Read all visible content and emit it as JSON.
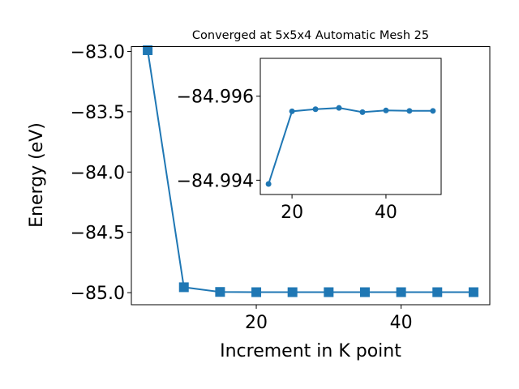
{
  "chart_data": [
    {
      "type": "line",
      "title": "Converged at 5x5x4 Automatic Mesh 25",
      "xlabel": "Increment in K point",
      "ylabel": "Energy (eV)",
      "x": [
        5,
        10,
        15,
        20,
        25,
        30,
        35,
        40,
        45,
        50
      ],
      "series": [
        {
          "values": [
            -82.99,
            -84.955,
            -84.994,
            -84.996,
            -84.996,
            -84.996,
            -84.996,
            -84.996,
            -84.996,
            -84.996
          ]
        }
      ],
      "xlim": [
        2.75,
        52.25
      ],
      "ylim": [
        -85.1,
        -82.96
      ],
      "xticks": [
        20,
        40
      ],
      "xtick_labels": [
        "20",
        "40"
      ],
      "yticks": [
        -83.0,
        -83.5,
        -84.0,
        -84.5,
        -85.0
      ],
      "ytick_labels": [
        "−83.0",
        "−83.5",
        "−84.0",
        "−84.5",
        "−85.0"
      ],
      "marker": "square",
      "color": "#1f77b4",
      "grid": false,
      "legend": "none"
    },
    {
      "type": "line",
      "inset": true,
      "x": [
        15,
        20,
        25,
        30,
        35,
        40,
        45,
        50
      ],
      "series": [
        {
          "values": [
            -84.99391,
            -84.99564,
            -84.99569,
            -84.99572,
            -84.99562,
            -84.99566,
            -84.99565,
            -84.99565
          ]
        }
      ],
      "xlim": [
        13.25,
        51.75
      ],
      "ylim": [
        -84.99366,
        -84.9969
      ],
      "xticks": [
        20,
        40
      ],
      "xtick_labels": [
        "20",
        "40"
      ],
      "yticks": [
        -84.996,
        -84.994
      ],
      "ytick_labels": [
        "−84.996",
        "−84.994"
      ],
      "marker": "circle",
      "color": "#1f77b4",
      "grid": false
    }
  ]
}
